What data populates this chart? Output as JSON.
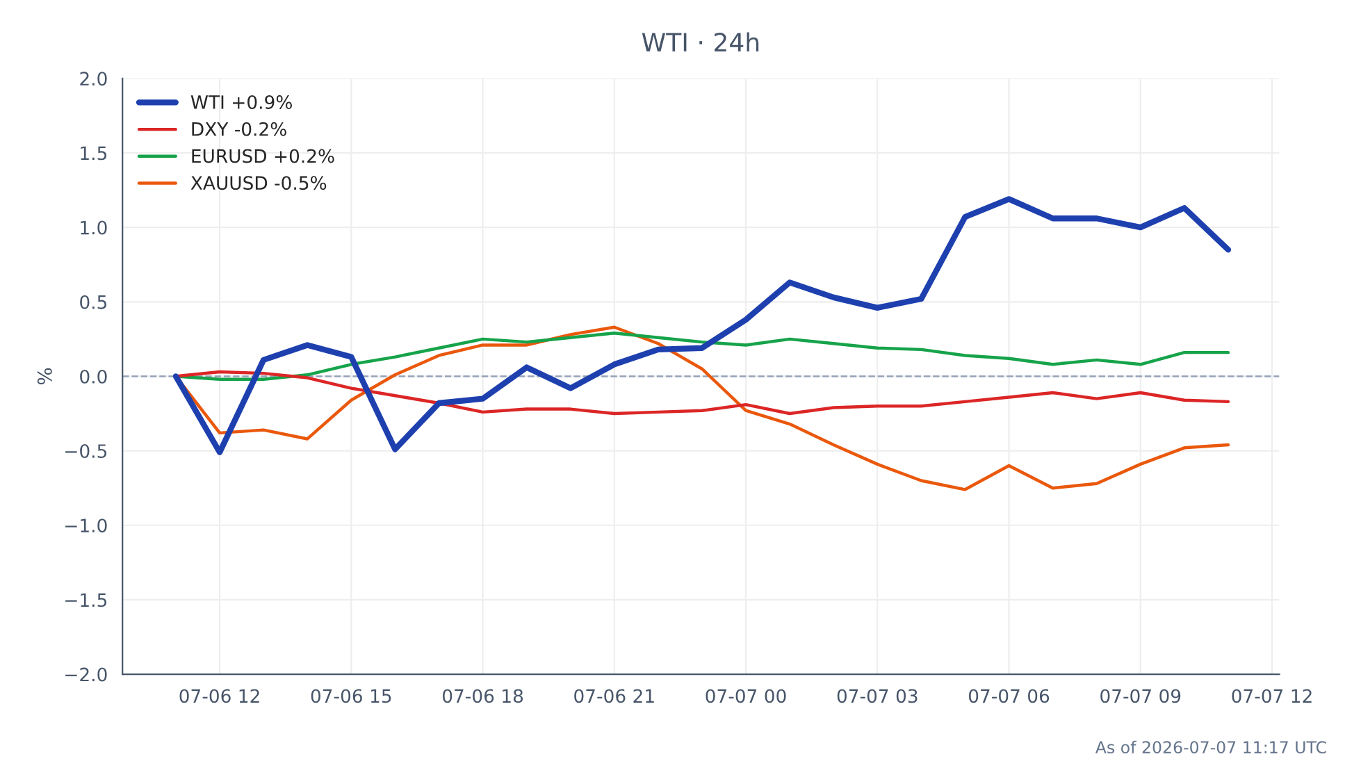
{
  "chart_data": {
    "type": "line",
    "title": "WTI · 24h",
    "ylabel": "%",
    "x": [
      "2026-07-06T11:00",
      "2026-07-06T12:00",
      "2026-07-06T13:00",
      "2026-07-06T14:00",
      "2026-07-06T15:00",
      "2026-07-06T16:00",
      "2026-07-06T17:00",
      "2026-07-06T18:00",
      "2026-07-06T19:00",
      "2026-07-06T20:00",
      "2026-07-06T21:00",
      "2026-07-06T22:00",
      "2026-07-06T23:00",
      "2026-07-07T00:00",
      "2026-07-07T01:00",
      "2026-07-07T02:00",
      "2026-07-07T03:00",
      "2026-07-07T04:00",
      "2026-07-07T05:00",
      "2026-07-07T06:00",
      "2026-07-07T07:00",
      "2026-07-07T08:00",
      "2026-07-07T09:00",
      "2026-07-07T10:00",
      "2026-07-07T11:00"
    ],
    "series": [
      {
        "name": "WTI +0.9%",
        "color": "#1e40af",
        "values": [
          0,
          -0.51,
          0.11,
          0.21,
          0.13,
          -0.49,
          -0.18,
          -0.15,
          0.06,
          -0.08,
          0.08,
          0.18,
          0.19,
          0.38,
          0.63,
          0.53,
          0.46,
          0.52,
          1.07,
          1.19,
          1.06,
          1.06,
          1.0,
          1.13,
          0.85
        ]
      },
      {
        "name": "DXY -0.2%",
        "color": "#dc2626",
        "values": [
          0,
          0.03,
          0.02,
          -0.01,
          -0.08,
          -0.13,
          -0.18,
          -0.24,
          -0.22,
          -0.22,
          -0.25,
          -0.24,
          -0.23,
          -0.19,
          -0.25,
          -0.21,
          -0.2,
          -0.2,
          -0.17,
          -0.14,
          -0.11,
          -0.15,
          -0.11,
          -0.16,
          -0.17
        ]
      },
      {
        "name": "EURUSD +0.2%",
        "color": "#16a34a",
        "values": [
          0,
          -0.02,
          -0.02,
          0.01,
          0.08,
          0.13,
          0.19,
          0.25,
          0.23,
          0.26,
          0.29,
          0.26,
          0.23,
          0.21,
          0.25,
          0.22,
          0.19,
          0.18,
          0.14,
          0.12,
          0.08,
          0.11,
          0.08,
          0.16,
          0.16
        ]
      },
      {
        "name": "XAUUSD -0.5%",
        "color": "#ea580c",
        "values": [
          0,
          -0.38,
          -0.36,
          -0.42,
          -0.16,
          0.01,
          0.14,
          0.21,
          0.21,
          0.28,
          0.33,
          0.22,
          0.05,
          -0.23,
          -0.32,
          -0.46,
          -0.59,
          -0.7,
          -0.76,
          -0.6,
          -0.75,
          -0.72,
          -0.59,
          -0.48,
          -0.46
        ]
      }
    ],
    "xlim": [
      "2026-07-06T09:47",
      "2026-07-07T12:10"
    ],
    "xticks": [
      {
        "value": "2026-07-06T12:00",
        "label": "07-06 12"
      },
      {
        "value": "2026-07-06T15:00",
        "label": "07-06 15"
      },
      {
        "value": "2026-07-06T18:00",
        "label": "07-06 18"
      },
      {
        "value": "2026-07-06T21:00",
        "label": "07-06 21"
      },
      {
        "value": "2026-07-07T00:00",
        "label": "07-07 00"
      },
      {
        "value": "2026-07-07T03:00",
        "label": "07-07 03"
      },
      {
        "value": "2026-07-07T06:00",
        "label": "07-07 06"
      },
      {
        "value": "2026-07-07T09:00",
        "label": "07-07 09"
      },
      {
        "value": "2026-07-07T12:00",
        "label": "07-07 12"
      }
    ],
    "ylim": [
      -2.0,
      2.0
    ],
    "yticks": [
      {
        "value": -2.0,
        "label": "−2.0"
      },
      {
        "value": -1.5,
        "label": "−1.5"
      },
      {
        "value": -1.0,
        "label": "−1.0"
      },
      {
        "value": -0.5,
        "label": "−0.5"
      },
      {
        "value": 0.0,
        "label": "0.0"
      },
      {
        "value": 0.5,
        "label": "0.5"
      },
      {
        "value": 1.0,
        "label": "1.0"
      },
      {
        "value": 1.5,
        "label": "1.5"
      },
      {
        "value": 2.0,
        "label": "2.0"
      }
    ],
    "ref_lines": [
      {
        "axis": "y",
        "value": 0,
        "color": "#94a3b8",
        "line_style": "dashed"
      }
    ],
    "grid": true,
    "legend": "top left",
    "line_style": "solid",
    "marker": "none",
    "annotations": [
      "As of 2026-07-07 11:17 UTC"
    ]
  }
}
